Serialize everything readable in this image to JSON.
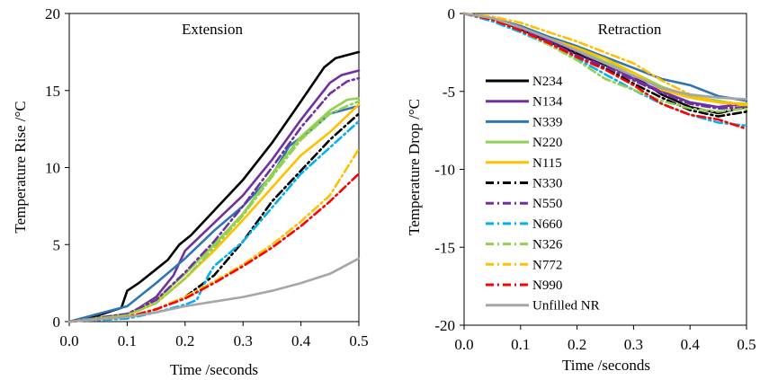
{
  "colors": {
    "N234": "#000000",
    "N134": "#7030a0",
    "N339": "#2e75b6",
    "N220": "#92d050",
    "N115": "#ffc000",
    "N330": "#000000",
    "N550": "#7030a0",
    "N660": "#00b0f0",
    "N326": "#92d050",
    "N772": "#ffc000",
    "N990": "#ff0000",
    "Unfilled NR": "#a6a6a6"
  },
  "chart_data": [
    {
      "type": "line",
      "title": "Extension",
      "xlabel": "Time /seconds",
      "ylabel": "Temperature Rise /°C",
      "xlim": [
        0,
        0.5
      ],
      "ylim": [
        0,
        20
      ],
      "xticks": [
        "0.0",
        "0.1",
        "0.2",
        "0.3",
        "0.4",
        "0.5"
      ],
      "yticks": [
        "0",
        "5",
        "10",
        "15",
        "20"
      ],
      "grid": false,
      "series": [
        {
          "name": "N234",
          "style": "solid",
          "x": [
            0,
            0.05,
            0.09,
            0.1,
            0.12,
            0.15,
            0.17,
            0.19,
            0.21,
            0.25,
            0.3,
            0.35,
            0.4,
            0.44,
            0.46,
            0.5
          ],
          "y": [
            0,
            0.4,
            0.9,
            2.0,
            2.5,
            3.4,
            4.0,
            5.0,
            5.6,
            7.2,
            9.2,
            11.6,
            14.3,
            16.5,
            17.1,
            17.5
          ]
        },
        {
          "name": "N134",
          "style": "solid",
          "x": [
            0,
            0.1,
            0.15,
            0.18,
            0.2,
            0.25,
            0.3,
            0.35,
            0.4,
            0.45,
            0.47,
            0.5
          ],
          "y": [
            0,
            0.4,
            1.6,
            3.0,
            4.6,
            6.4,
            8.2,
            10.5,
            13.1,
            15.5,
            16.0,
            16.3
          ]
        },
        {
          "name": "N339",
          "style": "solid",
          "x": [
            0,
            0.05,
            0.1,
            0.15,
            0.2,
            0.25,
            0.3,
            0.35,
            0.38,
            0.42,
            0.45,
            0.5
          ],
          "y": [
            0,
            0.5,
            1.0,
            2.5,
            4.1,
            5.9,
            7.5,
            9.5,
            11.4,
            12.5,
            13.5,
            14.0
          ]
        },
        {
          "name": "N220",
          "style": "solid",
          "x": [
            0,
            0.1,
            0.15,
            0.2,
            0.25,
            0.3,
            0.35,
            0.4,
            0.45,
            0.48,
            0.5
          ],
          "y": [
            0,
            0.5,
            1.4,
            3.1,
            5.0,
            7.0,
            9.6,
            12.0,
            13.7,
            14.4,
            14.5
          ]
        },
        {
          "name": "N115",
          "style": "solid",
          "x": [
            0,
            0.1,
            0.15,
            0.2,
            0.25,
            0.3,
            0.35,
            0.4,
            0.45,
            0.5
          ],
          "y": [
            0,
            0.4,
            1.2,
            2.8,
            4.6,
            6.6,
            8.7,
            10.8,
            12.3,
            14.1
          ]
        },
        {
          "name": "N330",
          "style": "dashdot",
          "x": [
            0,
            0.1,
            0.15,
            0.2,
            0.25,
            0.3,
            0.35,
            0.4,
            0.45,
            0.5
          ],
          "y": [
            0,
            0.3,
            0.8,
            1.6,
            3.0,
            5.2,
            7.8,
            9.8,
            11.8,
            13.5
          ]
        },
        {
          "name": "N550",
          "style": "dashdot",
          "x": [
            0,
            0.1,
            0.15,
            0.2,
            0.25,
            0.3,
            0.35,
            0.4,
            0.45,
            0.48,
            0.5
          ],
          "y": [
            0,
            0.5,
            1.4,
            3.2,
            5.2,
            7.5,
            10.0,
            12.6,
            14.8,
            15.6,
            15.8
          ]
        },
        {
          "name": "N660",
          "style": "dashdot",
          "x": [
            0,
            0.1,
            0.15,
            0.2,
            0.22,
            0.24,
            0.25,
            0.3,
            0.35,
            0.4,
            0.45,
            0.5
          ],
          "y": [
            0,
            0.2,
            0.6,
            1.1,
            1.4,
            3.0,
            3.6,
            5.2,
            7.4,
            9.6,
            11.3,
            13.0
          ]
        },
        {
          "name": "N326",
          "style": "dashdot",
          "x": [
            0,
            0.1,
            0.15,
            0.2,
            0.25,
            0.3,
            0.35,
            0.4,
            0.45,
            0.48,
            0.5
          ],
          "y": [
            0,
            0.4,
            1.2,
            2.8,
            4.8,
            6.9,
            9.4,
            11.8,
            13.5,
            14.0,
            14.3
          ]
        },
        {
          "name": "N772",
          "style": "dashdot",
          "x": [
            0,
            0.1,
            0.15,
            0.2,
            0.25,
            0.3,
            0.35,
            0.4,
            0.45,
            0.5
          ],
          "y": [
            0,
            0.3,
            0.8,
            1.6,
            2.6,
            3.7,
            5.0,
            6.5,
            8.2,
            11.2
          ]
        },
        {
          "name": "N990",
          "style": "dashdot",
          "x": [
            0,
            0.1,
            0.15,
            0.2,
            0.25,
            0.3,
            0.35,
            0.4,
            0.45,
            0.5
          ],
          "y": [
            0,
            0.3,
            0.8,
            1.5,
            2.5,
            3.6,
            4.8,
            6.2,
            7.8,
            9.6
          ]
        },
        {
          "name": "Unfilled NR",
          "style": "solid",
          "x": [
            0,
            0.1,
            0.15,
            0.2,
            0.25,
            0.3,
            0.35,
            0.4,
            0.45,
            0.5
          ],
          "y": [
            0,
            0.3,
            0.6,
            1.0,
            1.3,
            1.6,
            2.0,
            2.5,
            3.1,
            4.1
          ]
        }
      ]
    },
    {
      "type": "line",
      "title": "Retraction",
      "xlabel": "Time /seconds",
      "ylabel": "Temperature Drop /°C",
      "xlim": [
        0,
        0.5
      ],
      "ylim": [
        -20,
        0
      ],
      "xticks": [
        "0.0",
        "0.1",
        "0.2",
        "0.3",
        "0.4",
        "0.5"
      ],
      "yticks": [
        "0",
        "-5",
        "-10",
        "-15",
        "-20"
      ],
      "grid": false,
      "legend": "left",
      "series": [
        {
          "name": "N234",
          "style": "solid",
          "x": [
            0,
            0.05,
            0.1,
            0.15,
            0.2,
            0.25,
            0.3,
            0.35,
            0.4,
            0.45,
            0.5
          ],
          "y": [
            0,
            -0.3,
            -1.0,
            -1.8,
            -2.6,
            -3.3,
            -4.0,
            -5.2,
            -6.0,
            -6.4,
            -6.0
          ]
        },
        {
          "name": "N134",
          "style": "solid",
          "x": [
            0,
            0.05,
            0.1,
            0.15,
            0.2,
            0.25,
            0.3,
            0.35,
            0.4,
            0.45,
            0.5
          ],
          "y": [
            0,
            -0.3,
            -0.9,
            -1.7,
            -2.5,
            -3.2,
            -4.2,
            -5.0,
            -5.7,
            -6.0,
            -5.8
          ]
        },
        {
          "name": "N339",
          "style": "solid",
          "x": [
            0,
            0.05,
            0.1,
            0.15,
            0.2,
            0.25,
            0.3,
            0.35,
            0.4,
            0.45,
            0.5
          ],
          "y": [
            0,
            -0.3,
            -0.8,
            -1.5,
            -2.1,
            -2.8,
            -3.5,
            -4.2,
            -4.6,
            -5.3,
            -5.6
          ]
        },
        {
          "name": "N220",
          "style": "solid",
          "x": [
            0,
            0.05,
            0.1,
            0.15,
            0.2,
            0.25,
            0.3,
            0.35,
            0.4,
            0.45,
            0.5
          ],
          "y": [
            0,
            -0.3,
            -0.9,
            -1.6,
            -2.3,
            -3.1,
            -3.8,
            -4.7,
            -5.3,
            -5.6,
            -5.9
          ]
        },
        {
          "name": "N115",
          "style": "solid",
          "x": [
            0,
            0.05,
            0.1,
            0.15,
            0.2,
            0.25,
            0.3,
            0.35,
            0.4,
            0.45,
            0.5
          ],
          "y": [
            0,
            -0.3,
            -0.9,
            -1.6,
            -2.2,
            -2.9,
            -3.8,
            -4.9,
            -5.4,
            -5.7,
            -5.8
          ]
        },
        {
          "name": "N330",
          "style": "dashdot",
          "x": [
            0,
            0.05,
            0.1,
            0.15,
            0.2,
            0.25,
            0.3,
            0.35,
            0.4,
            0.45,
            0.5
          ],
          "y": [
            0,
            -0.4,
            -1.0,
            -1.8,
            -2.6,
            -3.5,
            -4.5,
            -5.4,
            -6.2,
            -6.6,
            -6.3
          ]
        },
        {
          "name": "N550",
          "style": "dashdot",
          "x": [
            0,
            0.05,
            0.1,
            0.15,
            0.2,
            0.25,
            0.3,
            0.35,
            0.4,
            0.45,
            0.5
          ],
          "y": [
            0,
            -0.3,
            -1.0,
            -1.8,
            -2.7,
            -3.4,
            -4.3,
            -5.1,
            -5.8,
            -6.1,
            -6.0
          ]
        },
        {
          "name": "N660",
          "style": "dashdot",
          "x": [
            0,
            0.05,
            0.1,
            0.15,
            0.2,
            0.25,
            0.3,
            0.35,
            0.4,
            0.45,
            0.5
          ],
          "y": [
            0,
            -0.5,
            -1.2,
            -2.0,
            -2.9,
            -3.9,
            -4.9,
            -5.8,
            -6.5,
            -7.0,
            -7.2
          ]
        },
        {
          "name": "N326",
          "style": "dashdot",
          "x": [
            0,
            0.05,
            0.1,
            0.15,
            0.2,
            0.25,
            0.3,
            0.35,
            0.4,
            0.45,
            0.5
          ],
          "y": [
            0,
            -0.4,
            -1.1,
            -2.0,
            -3.0,
            -4.2,
            -4.9,
            -5.6,
            -6.1,
            -6.3,
            -6.1
          ]
        },
        {
          "name": "N772",
          "style": "dashdot",
          "x": [
            0,
            0.05,
            0.1,
            0.15,
            0.2,
            0.25,
            0.3,
            0.35,
            0.4,
            0.45,
            0.5
          ],
          "y": [
            0,
            -0.2,
            -0.6,
            -1.2,
            -1.8,
            -2.5,
            -3.2,
            -4.3,
            -5.2,
            -5.7,
            -5.9
          ]
        },
        {
          "name": "N990",
          "style": "dashdot",
          "x": [
            0,
            0.05,
            0.1,
            0.15,
            0.2,
            0.25,
            0.3,
            0.35,
            0.4,
            0.45,
            0.5
          ],
          "y": [
            0,
            -0.4,
            -1.1,
            -1.9,
            -2.8,
            -3.6,
            -4.6,
            -5.8,
            -6.5,
            -6.8,
            -7.4
          ]
        },
        {
          "name": "Unfilled NR",
          "style": "solid",
          "x": [
            0,
            0.05,
            0.1,
            0.15,
            0.2,
            0.25,
            0.3,
            0.35,
            0.4,
            0.45,
            0.5
          ],
          "y": [
            0,
            -0.3,
            -0.9,
            -1.6,
            -2.4,
            -3.2,
            -4.0,
            -4.8,
            -5.2,
            -5.4,
            -5.5
          ]
        }
      ]
    }
  ]
}
